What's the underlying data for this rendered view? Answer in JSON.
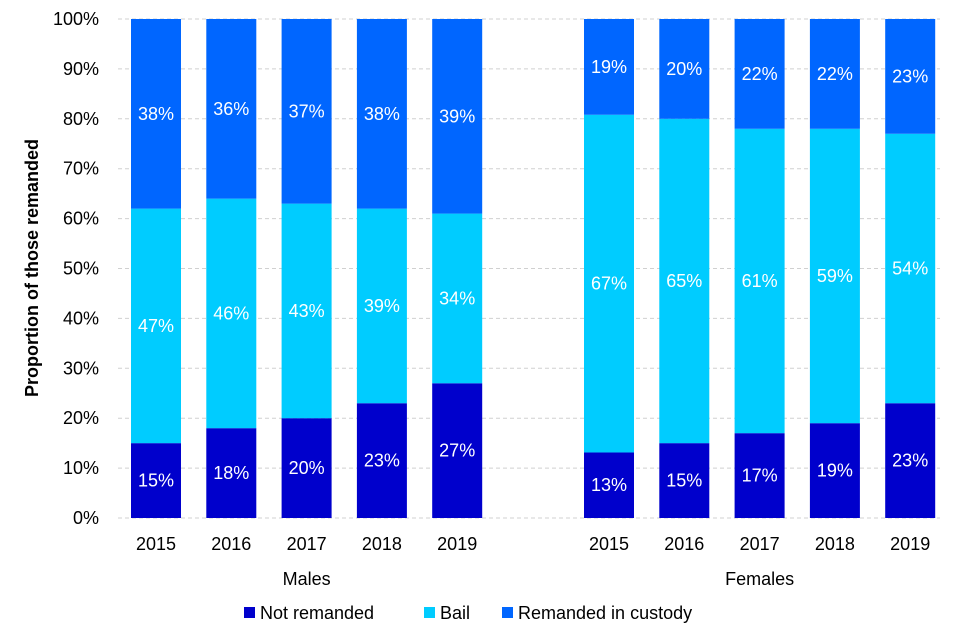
{
  "chart_data": {
    "type": "bar",
    "stacked": true,
    "percent_stacked": true,
    "title": "",
    "xlabel": "",
    "ylabel": "Proportion of those remanded",
    "ylim": [
      0,
      100
    ],
    "y_ticks": [
      "0%",
      "10%",
      "20%",
      "30%",
      "40%",
      "50%",
      "60%",
      "70%",
      "80%",
      "90%",
      "100%"
    ],
    "grid": true,
    "legend_position": "bottom",
    "groups": [
      {
        "name": "Males",
        "categories": [
          "2015",
          "2016",
          "2017",
          "2018",
          "2019"
        ]
      },
      {
        "name": "Females",
        "categories": [
          "2015",
          "2016",
          "2017",
          "2018",
          "2019"
        ]
      }
    ],
    "series": [
      {
        "name": "Not remanded",
        "color": "#0000cc",
        "values": {
          "Males": [
            15,
            18,
            20,
            23,
            27
          ],
          "Females": [
            13,
            15,
            17,
            19,
            23
          ]
        },
        "labels": {
          "Males": [
            "15%",
            "18%",
            "20%",
            "23%",
            "27%"
          ],
          "Females": [
            "13%",
            "15%",
            "17%",
            "19%",
            "23%"
          ]
        }
      },
      {
        "name": "Bail",
        "color": "#00ccff",
        "values": {
          "Males": [
            47,
            46,
            43,
            39,
            34
          ],
          "Females": [
            67,
            65,
            61,
            59,
            54
          ]
        },
        "labels": {
          "Males": [
            "47%",
            "46%",
            "43%",
            "39%",
            "34%"
          ],
          "Females": [
            "67%",
            "65%",
            "61%",
            "59%",
            "54%"
          ]
        }
      },
      {
        "name": "Remanded in custody",
        "color": "#0066ff",
        "values": {
          "Males": [
            38,
            36,
            37,
            38,
            39
          ],
          "Females": [
            19,
            20,
            22,
            22,
            23
          ]
        },
        "labels": {
          "Males": [
            "38%",
            "36%",
            "37%",
            "38%",
            "39%"
          ],
          "Females": [
            "19%",
            "20%",
            "22%",
            "22%",
            "23%"
          ]
        }
      }
    ]
  }
}
